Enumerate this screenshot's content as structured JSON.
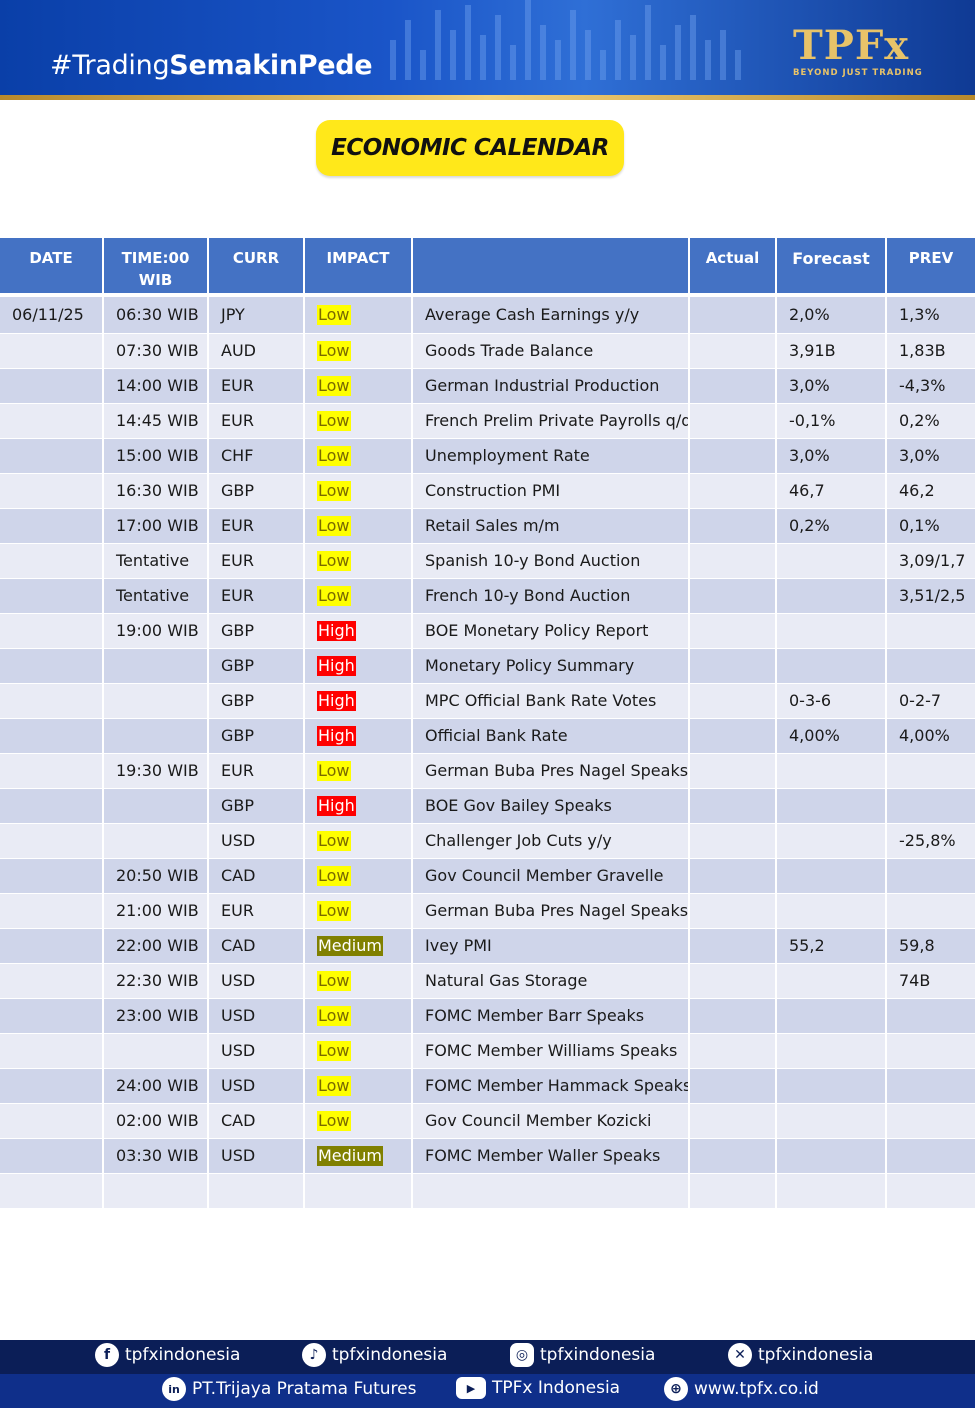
{
  "header": {
    "hashtag_prefix": "#Trading",
    "hashtag_bold": "SemakinPede",
    "logo_text": "TPFx",
    "logo_tagline": "BEYOND JUST TRADING"
  },
  "title": "ECONOMIC CALENDAR",
  "table": {
    "columns": [
      "DATE",
      "TIME:00 WIB",
      "CURR",
      "IMPACT",
      "",
      "Actual",
      "Forecast",
      "PREV"
    ],
    "rows": [
      {
        "date": "06/11/25",
        "time": "06:30 WIB",
        "curr": "JPY",
        "impact": "Low",
        "event": "Average Cash Earnings y/y",
        "actual": "",
        "forecast": "2,0%",
        "prev": "1,3%"
      },
      {
        "date": "",
        "time": "07:30 WIB",
        "curr": "AUD",
        "impact": "Low",
        "event": "Goods Trade Balance",
        "actual": "",
        "forecast": "3,91B",
        "prev": "1,83B"
      },
      {
        "date": "",
        "time": "14:00 WIB",
        "curr": "EUR",
        "impact": "Low",
        "event": "German Industrial Production",
        "actual": "",
        "forecast": "3,0%",
        "prev": "-4,3%"
      },
      {
        "date": "",
        "time": "14:45 WIB",
        "curr": "EUR",
        "impact": "Low",
        "event": "French Prelim Private Payrolls q/q",
        "actual": "",
        "forecast": "-0,1%",
        "prev": "0,2%"
      },
      {
        "date": "",
        "time": "15:00 WIB",
        "curr": "CHF",
        "impact": "Low",
        "event": "Unemployment Rate",
        "actual": "",
        "forecast": "3,0%",
        "prev": "3,0%"
      },
      {
        "date": "",
        "time": "16:30 WIB",
        "curr": "GBP",
        "impact": "Low",
        "event": "Construction PMI",
        "actual": "",
        "forecast": "46,7",
        "prev": "46,2"
      },
      {
        "date": "",
        "time": "17:00 WIB",
        "curr": "EUR",
        "impact": "Low",
        "event": "Retail Sales m/m",
        "actual": "",
        "forecast": "0,2%",
        "prev": "0,1%"
      },
      {
        "date": "",
        "time": "Tentative",
        "curr": "EUR",
        "impact": "Low",
        "event": "Spanish 10-y Bond Auction",
        "actual": "",
        "forecast": "",
        "prev": "3,09/1,7"
      },
      {
        "date": "",
        "time": "Tentative",
        "curr": "EUR",
        "impact": "Low",
        "event": "French 10-y Bond Auction",
        "actual": "",
        "forecast": "",
        "prev": "3,51/2,5"
      },
      {
        "date": "",
        "time": "19:00 WIB",
        "curr": "GBP",
        "impact": "High",
        "event": "BOE Monetary Policy Report",
        "actual": "",
        "forecast": "",
        "prev": ""
      },
      {
        "date": "",
        "time": "",
        "curr": "GBP",
        "impact": "High",
        "event": "Monetary Policy Summary",
        "actual": "",
        "forecast": "",
        "prev": ""
      },
      {
        "date": "",
        "time": "",
        "curr": "GBP",
        "impact": "High",
        "event": "MPC Official Bank Rate Votes",
        "actual": "",
        "forecast": "0-3-6",
        "prev": "0-2-7"
      },
      {
        "date": "",
        "time": "",
        "curr": "GBP",
        "impact": "High",
        "event": "Official Bank Rate",
        "actual": "",
        "forecast": "4,00%",
        "prev": "4,00%"
      },
      {
        "date": "",
        "time": "19:30 WIB",
        "curr": "EUR",
        "impact": "Low",
        "event": "German Buba Pres Nagel Speaks",
        "actual": "",
        "forecast": "",
        "prev": ""
      },
      {
        "date": "",
        "time": "",
        "curr": "GBP",
        "impact": "High",
        "event": "BOE Gov Bailey Speaks",
        "actual": "",
        "forecast": "",
        "prev": ""
      },
      {
        "date": "",
        "time": "",
        "curr": "USD",
        "impact": "Low",
        "event": "Challenger Job Cuts y/y",
        "actual": "",
        "forecast": "",
        "prev": "-25,8%"
      },
      {
        "date": "",
        "time": "20:50 WIB",
        "curr": "CAD",
        "impact": "Low",
        "event": "Gov Council Member Gravelle",
        "actual": "",
        "forecast": "",
        "prev": ""
      },
      {
        "date": "",
        "time": "21:00 WIB",
        "curr": "EUR",
        "impact": "Low",
        "event": "German Buba Pres Nagel Speaks",
        "actual": "",
        "forecast": "",
        "prev": ""
      },
      {
        "date": "",
        "time": "22:00 WIB",
        "curr": "CAD",
        "impact": "Medium",
        "event": "Ivey PMI",
        "actual": "",
        "forecast": "55,2",
        "prev": "59,8"
      },
      {
        "date": "",
        "time": "22:30 WIB",
        "curr": "USD",
        "impact": "Low",
        "event": "Natural Gas Storage",
        "actual": "",
        "forecast": "",
        "prev": "74B"
      },
      {
        "date": "",
        "time": "23:00 WIB",
        "curr": "USD",
        "impact": "Low",
        "event": "FOMC Member Barr Speaks",
        "actual": "",
        "forecast": "",
        "prev": ""
      },
      {
        "date": "",
        "time": "",
        "curr": "USD",
        "impact": "Low",
        "event": "FOMC Member Williams Speaks",
        "actual": "",
        "forecast": "",
        "prev": ""
      },
      {
        "date": "",
        "time": "24:00 WIB",
        "curr": "USD",
        "impact": "Low",
        "event": "FOMC Member Hammack Speaks",
        "actual": "",
        "forecast": "",
        "prev": ""
      },
      {
        "date": "",
        "time": "02:00 WIB",
        "curr": "CAD",
        "impact": "Low",
        "event": "Gov Council Member Kozicki",
        "actual": "",
        "forecast": "",
        "prev": ""
      },
      {
        "date": "",
        "time": "03:30 WIB",
        "curr": "USD",
        "impact": "Medium",
        "event": "FOMC Member Waller Speaks",
        "actual": "",
        "forecast": "",
        "prev": ""
      },
      {
        "date": "",
        "time": "",
        "curr": "",
        "impact": "",
        "event": "",
        "actual": "",
        "forecast": "",
        "prev": ""
      }
    ]
  },
  "footer": {
    "row1": [
      {
        "icon": "facebook-icon",
        "glyph": "f",
        "label": "tpfxindonesia"
      },
      {
        "icon": "tiktok-icon",
        "glyph": "♪",
        "label": "tpfxindonesia"
      },
      {
        "icon": "instagram-icon",
        "glyph": "◎",
        "label": "tpfxindonesia"
      },
      {
        "icon": "x-icon",
        "glyph": "✕",
        "label": "tpfxindonesia"
      }
    ],
    "row2": [
      {
        "icon": "linkedin-icon",
        "glyph": "in",
        "label": "PT.Trijaya Pratama Futures"
      },
      {
        "icon": "youtube-icon",
        "glyph": "▶",
        "label": "TPFx Indonesia"
      },
      {
        "icon": "globe-icon",
        "glyph": "⊕",
        "label": "www.tpfx.co.id"
      }
    ]
  },
  "colors": {
    "header_blue": "#4472c4",
    "row_dark": "#cfd5ea",
    "row_light": "#e9ebf5",
    "impact_low": "#ffff00",
    "impact_high": "#ff0000",
    "impact_medium": "#808000",
    "title_yellow": "#ffe81a"
  }
}
